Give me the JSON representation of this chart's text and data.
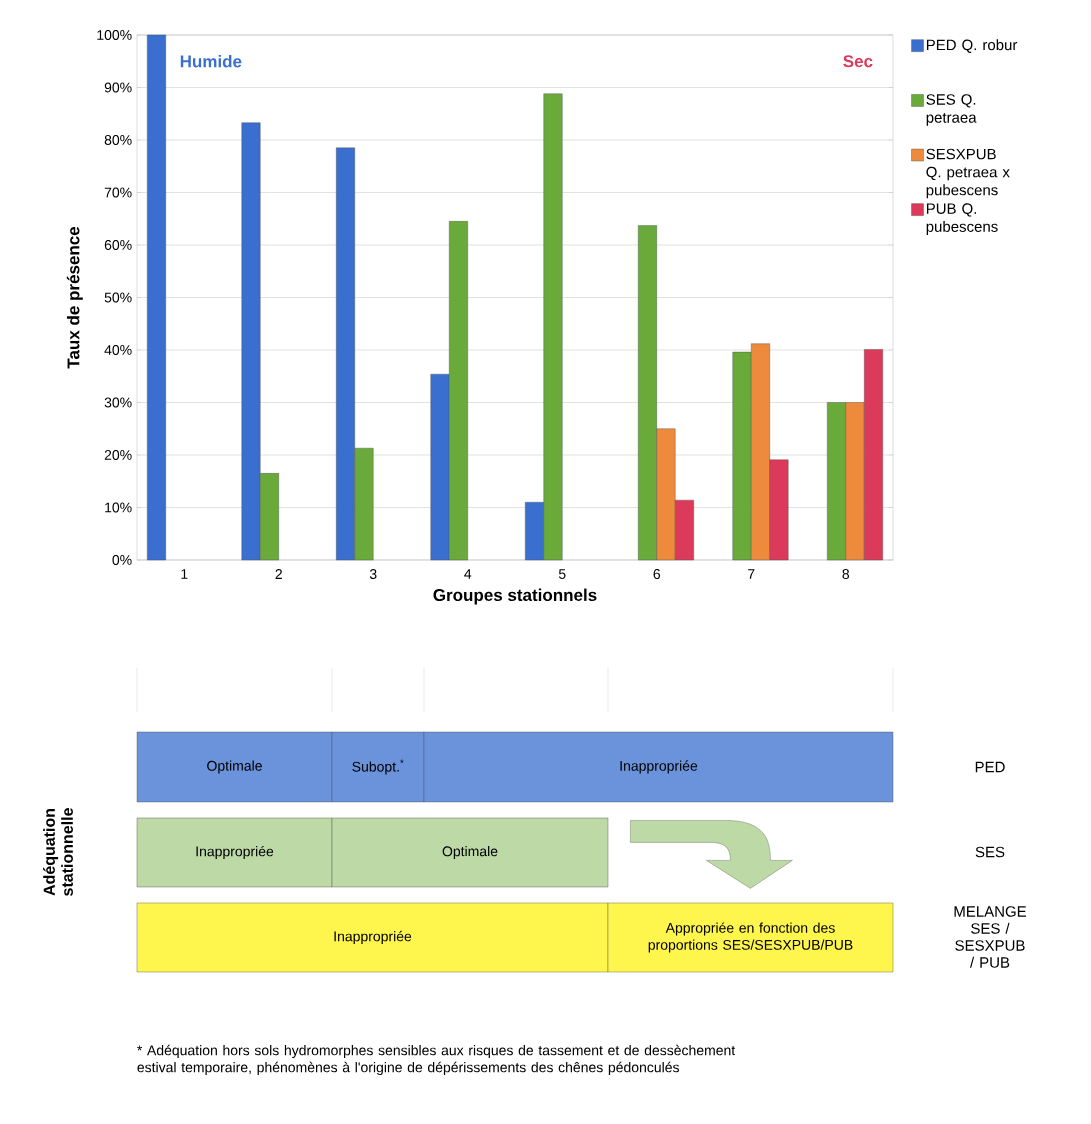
{
  "chart_data": {
    "type": "bar",
    "xlabel": "Groupes stationnels",
    "ylabel": "Taux de présence",
    "categories": [
      "1",
      "2",
      "3",
      "4",
      "5",
      "6",
      "7",
      "8"
    ],
    "series": [
      {
        "name": "PED Q. robur",
        "color": "#3a6fd0",
        "values": [
          100,
          83.3,
          78.5,
          35.4,
          11.0,
          null,
          null,
          null
        ]
      },
      {
        "name": "SES Q. petraea",
        "color": "#6aaa3a",
        "values": [
          null,
          16.5,
          21.3,
          64.5,
          88.8,
          63.7,
          39.6,
          30.0
        ]
      },
      {
        "name": "SESXPUB Q. petraea x pubescens",
        "color": "#ee8a3c",
        "values": [
          null,
          null,
          null,
          null,
          null,
          25.0,
          41.2,
          30.0
        ]
      },
      {
        "name": "PUB Q. pubescens",
        "color": "#dc3a5a",
        "values": [
          null,
          null,
          null,
          null,
          null,
          11.4,
          19.1,
          40.1
        ]
      }
    ],
    "ylim": [
      0,
      100
    ],
    "yticks": [
      {
        "value": 0,
        "label": "0%"
      },
      {
        "value": 10,
        "label": "10%"
      },
      {
        "value": 20,
        "label": "20%"
      },
      {
        "value": 30,
        "label": "30%"
      },
      {
        "value": 40,
        "label": "40%"
      },
      {
        "value": 50,
        "label": "50%"
      },
      {
        "value": 60,
        "label": "60%"
      },
      {
        "value": 70,
        "label": "70%"
      },
      {
        "value": 80,
        "label": "80%"
      },
      {
        "value": 90,
        "label": "90%"
      },
      {
        "value": 100,
        "label": "100%"
      }
    ],
    "grid": "y",
    "legend": "right",
    "annotations": [
      "Humide",
      "Sec",
      "Optimale",
      "Subopt.$^{*}$",
      "Inappropriée",
      "Inappropriée",
      "Optimale",
      "Inappropriée",
      "Appropriée en fonction des proportions SES/SESXPUB/PUB",
      "PED",
      "SES",
      "MELANGE SES / SESXPUB / PUB",
      "Adéquation stationnelle",
      "* Adéquation hors sols hydromorphes sensibles aux risques de tassement et de dessèchement estival temporaire, phénomènes à l'origine de dépérissements des chênes pédonculés"
    ]
  }
}
